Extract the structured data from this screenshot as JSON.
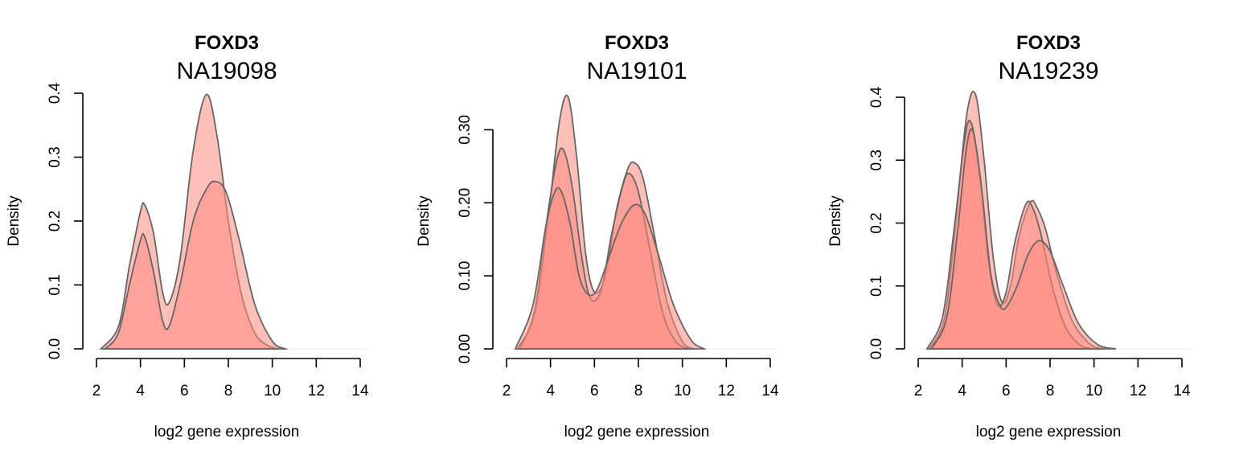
{
  "chart_data": [
    {
      "type": "area",
      "gene": "FOXD3",
      "sample": "NA19098",
      "xlabel": "log2 gene expression",
      "ylabel": "Density",
      "xlim": [
        2,
        14
      ],
      "ylim": [
        0,
        0.4
      ],
      "xticks": [
        "2",
        "4",
        "6",
        "8",
        "10",
        "12",
        "14"
      ],
      "yticks": [
        "0.0",
        "0.1",
        "0.2",
        "0.3",
        "0.4"
      ],
      "series": [
        {
          "x": [
            2.2,
            3.0,
            3.5,
            4.0,
            4.2,
            4.6,
            5.0,
            5.3,
            5.8,
            6.4,
            7.0,
            7.5,
            8.0,
            8.6,
            9.2,
            9.8,
            10.3
          ],
          "y": [
            0.0,
            0.035,
            0.13,
            0.215,
            0.225,
            0.18,
            0.09,
            0.072,
            0.14,
            0.31,
            0.398,
            0.33,
            0.2,
            0.085,
            0.025,
            0.005,
            0.0
          ]
        },
        {
          "x": [
            2.4,
            3.0,
            3.5,
            4.0,
            4.2,
            4.6,
            5.0,
            5.3,
            5.8,
            6.4,
            7.0,
            7.4,
            7.9,
            8.5,
            9.2,
            10.0,
            10.6
          ],
          "y": [
            0.0,
            0.025,
            0.1,
            0.17,
            0.175,
            0.12,
            0.045,
            0.035,
            0.1,
            0.2,
            0.25,
            0.262,
            0.245,
            0.17,
            0.07,
            0.012,
            0.0
          ]
        }
      ]
    },
    {
      "type": "area",
      "gene": "FOXD3",
      "sample": "NA19101",
      "xlabel": "log2 gene expression",
      "ylabel": "Density",
      "xlim": [
        2,
        14
      ],
      "ylim": [
        0,
        0.35
      ],
      "xticks": [
        "2",
        "4",
        "6",
        "8",
        "10",
        "12",
        "14"
      ],
      "yticks": [
        "0.00",
        "0.10",
        "0.20",
        "0.30"
      ],
      "series": [
        {
          "x": [
            2.5,
            3.3,
            3.9,
            4.4,
            4.8,
            5.2,
            5.6,
            6.0,
            6.5,
            7.0,
            7.5,
            7.8,
            8.2,
            8.7,
            9.3,
            10.0,
            10.5
          ],
          "y": [
            0.0,
            0.05,
            0.18,
            0.31,
            0.345,
            0.26,
            0.13,
            0.078,
            0.1,
            0.19,
            0.245,
            0.255,
            0.235,
            0.16,
            0.065,
            0.01,
            0.0
          ]
        },
        {
          "x": [
            2.6,
            3.3,
            3.9,
            4.3,
            4.6,
            5.0,
            5.4,
            5.8,
            6.3,
            6.8,
            7.3,
            7.6,
            8.0,
            8.5,
            9.1,
            9.7,
            10.3
          ],
          "y": [
            0.0,
            0.055,
            0.19,
            0.26,
            0.272,
            0.22,
            0.13,
            0.07,
            0.08,
            0.16,
            0.225,
            0.24,
            0.215,
            0.14,
            0.05,
            0.01,
            0.0
          ]
        },
        {
          "x": [
            2.4,
            3.2,
            3.8,
            4.2,
            4.5,
            4.9,
            5.3,
            5.7,
            6.1,
            6.6,
            7.2,
            7.8,
            8.3,
            8.9,
            9.6,
            10.4,
            11.0
          ],
          "y": [
            0.0,
            0.06,
            0.17,
            0.215,
            0.215,
            0.17,
            0.1,
            0.075,
            0.08,
            0.12,
            0.17,
            0.197,
            0.185,
            0.13,
            0.06,
            0.012,
            0.0
          ]
        }
      ]
    },
    {
      "type": "area",
      "gene": "FOXD3",
      "sample": "NA19239",
      "xlabel": "log2 gene expression",
      "ylabel": "Density",
      "xlim": [
        2,
        14
      ],
      "ylim": [
        0,
        0.4
      ],
      "xticks": [
        "2",
        "4",
        "6",
        "8",
        "10",
        "12",
        "14"
      ],
      "yticks": [
        "0.0",
        "0.1",
        "0.2",
        "0.3",
        "0.4"
      ],
      "series": [
        {
          "x": [
            2.5,
            3.2,
            3.7,
            4.2,
            4.6,
            5.0,
            5.4,
            5.8,
            6.2,
            6.6,
            7.1,
            7.4,
            7.8,
            8.3,
            9.0,
            9.8,
            10.4
          ],
          "y": [
            0.0,
            0.05,
            0.2,
            0.37,
            0.405,
            0.3,
            0.15,
            0.075,
            0.1,
            0.18,
            0.233,
            0.225,
            0.19,
            0.12,
            0.045,
            0.008,
            0.0
          ]
        },
        {
          "x": [
            2.4,
            3.1,
            3.6,
            4.1,
            4.4,
            4.8,
            5.2,
            5.6,
            6.0,
            6.4,
            6.9,
            7.2,
            7.6,
            8.1,
            8.7,
            9.4,
            10.0
          ],
          "y": [
            0.0,
            0.05,
            0.18,
            0.33,
            0.36,
            0.28,
            0.14,
            0.07,
            0.09,
            0.17,
            0.23,
            0.225,
            0.18,
            0.1,
            0.035,
            0.005,
            0.0
          ]
        },
        {
          "x": [
            2.6,
            3.3,
            3.8,
            4.2,
            4.5,
            4.9,
            5.3,
            5.7,
            6.0,
            6.5,
            7.0,
            7.5,
            8.0,
            8.6,
            9.3,
            10.2,
            11.0
          ],
          "y": [
            0.0,
            0.05,
            0.19,
            0.32,
            0.345,
            0.25,
            0.12,
            0.07,
            0.066,
            0.1,
            0.15,
            0.172,
            0.155,
            0.1,
            0.04,
            0.006,
            0.0
          ]
        }
      ]
    }
  ],
  "colors": {
    "fill": "#ff8a80",
    "fill_opacity": 0.55,
    "line": "#666666"
  }
}
